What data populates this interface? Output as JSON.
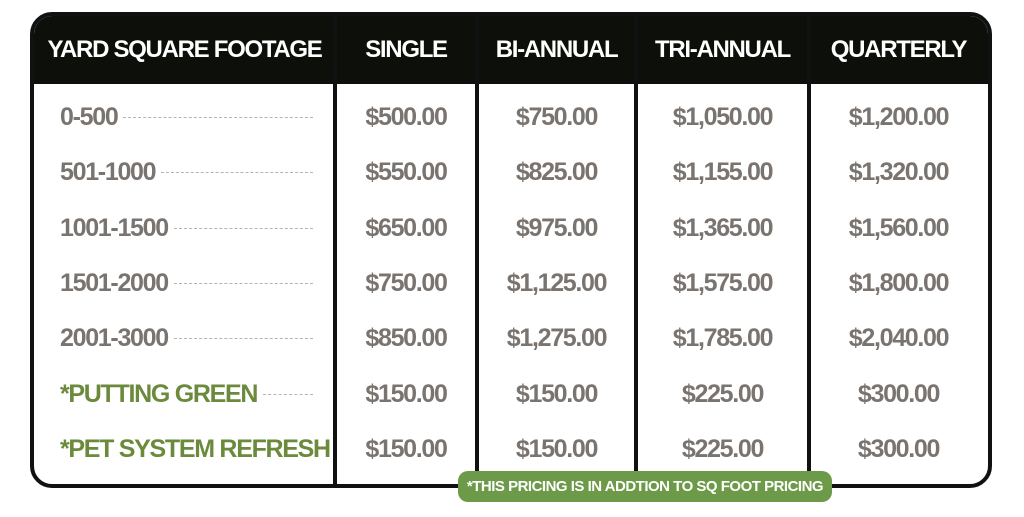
{
  "table": {
    "headers": [
      "YARD SQUARE FOOTAGE",
      "SINGLE",
      "BI-ANNUAL",
      "TRI-ANNUAL",
      "QUARTERLY"
    ],
    "rows": [
      [
        "0-500",
        "$500.00",
        "$750.00",
        "$1,050.00",
        "$1,200.00"
      ],
      [
        "501-1000",
        "$550.00",
        "$825.00",
        "$1,155.00",
        "$1,320.00"
      ],
      [
        "1001-1500",
        "$650.00",
        "$975.00",
        "$1,365.00",
        "$1,560.00"
      ],
      [
        "1501-2000",
        "$750.00",
        "$1,125.00",
        "$1,575.00",
        "$1,800.00"
      ],
      [
        "2001-3000",
        "$850.00",
        "$1,275.00",
        "$1,785.00",
        "$2,040.00"
      ],
      [
        "*PUTTING GREEN",
        "$150.00",
        "$150.00",
        "$225.00",
        "$300.00"
      ],
      [
        "*PET SYSTEM REFRESH",
        "$150.00",
        "$150.00",
        "$225.00",
        "$300.00"
      ]
    ],
    "note": "*THIS PRICING IS IN ADDTION TO SQ FOOT PRICING"
  }
}
